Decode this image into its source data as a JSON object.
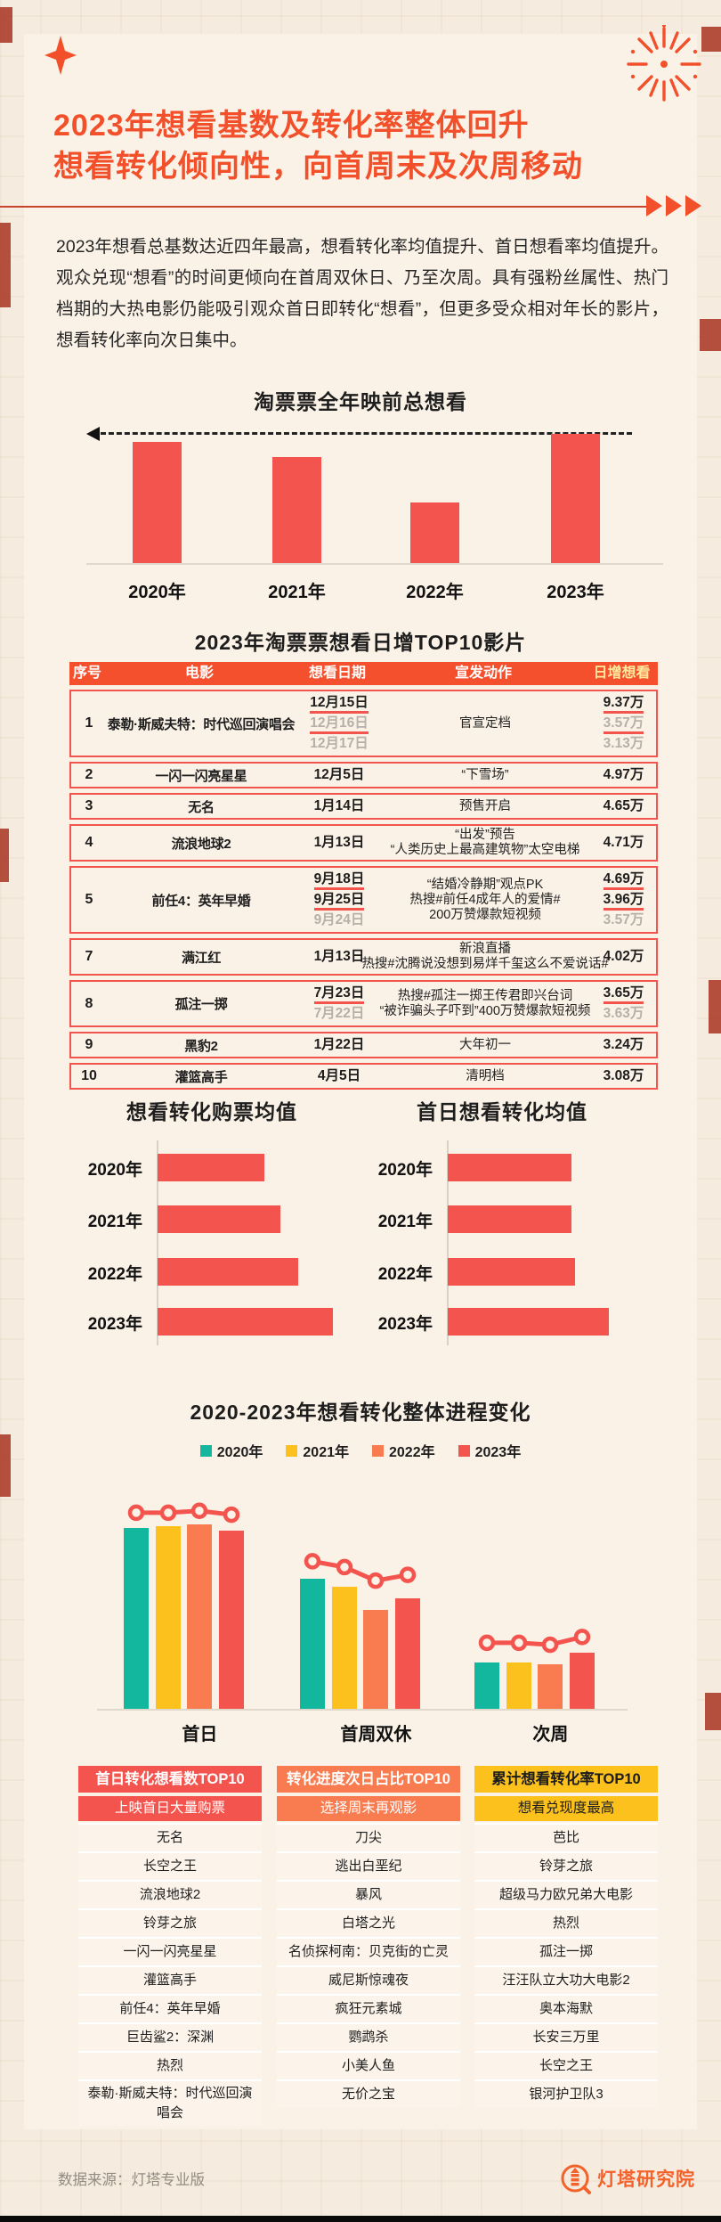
{
  "page": {
    "title_line1": "2023年想看基数及转化率整体回升",
    "title_line2": "想看转化倾向性，向首周末及次周移动",
    "intro": "2023年想看总基数达近四年最高，想看转化率均值提升、首日想看率均值提升。观众兑现“想看”的时间更倾向在首周双休日、乃至次周。具有强粉丝属性、热门档期的大热电影仍能吸引观众首日即转化“想看”，但更多受众相对年长的影片，想看转化率向次日集中。",
    "footer_source": "数据来源：灯塔专业版",
    "brand": "灯塔研究院"
  },
  "colors": {
    "accent": "#f2502b",
    "red": "#f4544e",
    "orange": "#f87c4f",
    "yellow": "#fcc11d",
    "teal": "#13b79d",
    "table_header_bg": "#f4502d",
    "table_header_accent_text": "#ffec9f",
    "gray_text": "#b5b0a8"
  },
  "chart_data": [
    {
      "id": "annual_total_wish",
      "type": "bar",
      "title": "淘票票全年映前总想看",
      "categories": [
        "2020年",
        "2021年",
        "2022年",
        "2023年"
      ],
      "values": [
        94,
        82,
        47,
        100
      ],
      "ylabel": "",
      "xlabel": "",
      "ylim": [
        0,
        100
      ],
      "unit": "relative index (2023 = 100, no numeric labels shown)",
      "annotation": "dashed reference line with left arrow at 2023 bar top"
    },
    {
      "id": "wish_to_purchase_avg",
      "type": "bar",
      "orientation": "horizontal",
      "title": "想看转化购票均值",
      "categories": [
        "2020年",
        "2021年",
        "2022年",
        "2023年"
      ],
      "values": [
        61,
        70,
        80,
        100
      ],
      "unit": "relative index (2023 = 100, no numeric labels shown)"
    },
    {
      "id": "first_day_wish_conversion_avg",
      "type": "bar",
      "orientation": "horizontal",
      "title": "首日想看转化均值",
      "categories": [
        "2020年",
        "2021年",
        "2022年",
        "2023年"
      ],
      "values": [
        77,
        77,
        79,
        100
      ],
      "unit": "relative index (2023 = 100, no numeric labels shown)"
    },
    {
      "id": "conversion_progress_change",
      "type": "bar+line",
      "title": "2020-2023年想看转化整体进程变化",
      "categories": [
        "首日",
        "首周双休",
        "次周"
      ],
      "legend_position": "top",
      "series": [
        {
          "name": "2020年",
          "color": "#13b79d",
          "values": [
            93,
            67,
            24
          ]
        },
        {
          "name": "2021年",
          "color": "#fcc11d",
          "values": [
            94,
            63,
            24
          ]
        },
        {
          "name": "2022年",
          "color": "#f87c4f",
          "values": [
            95,
            51,
            23
          ]
        },
        {
          "name": "2023年",
          "color": "#f4544e",
          "values": [
            92,
            57,
            29
          ]
        }
      ],
      "line_overlay": {
        "color": "#f4544e",
        "marker": "open-circle",
        "points_per_group": [
          [
            101,
            101,
            102,
            100
          ],
          [
            76,
            73,
            66,
            69
          ],
          [
            34,
            34,
            33,
            37
          ]
        ]
      },
      "unit": "relative index (no numeric labels shown)"
    }
  ],
  "table": {
    "title": "2023年淘票票想看日增TOP10影片",
    "headers": [
      "序号",
      "电影",
      "想看日期",
      "宣发动作",
      "日增想看"
    ],
    "rows": [
      {
        "no": "1",
        "movie": "泰勒·斯威夫特：时代巡回演唱会",
        "dates": [
          {
            "t": "12月15日",
            "u": 1
          },
          {
            "t": "12月16日",
            "u": 1,
            "g": 1
          },
          {
            "t": "12月17日",
            "g": 1
          }
        ],
        "actions": [
          {
            "t": "官宣定档"
          }
        ],
        "values": [
          {
            "t": "9.37万",
            "u": 1
          },
          {
            "t": "3.57万",
            "u": 1,
            "g": 1
          },
          {
            "t": "3.13万",
            "g": 1
          }
        ]
      },
      {
        "no": "2",
        "movie": "一闪一闪亮星星",
        "dates": [
          {
            "t": "12月5日"
          }
        ],
        "actions": [
          {
            "t": "“下雪场”"
          }
        ],
        "values": [
          {
            "t": "4.97万"
          }
        ]
      },
      {
        "no": "3",
        "movie": "无名",
        "dates": [
          {
            "t": "1月14日"
          }
        ],
        "actions": [
          {
            "t": "预售开启"
          }
        ],
        "values": [
          {
            "t": "4.65万"
          }
        ]
      },
      {
        "no": "4",
        "movie": "流浪地球2",
        "dates": [
          {
            "t": "1月13日"
          }
        ],
        "actions": [
          {
            "t": "“出发”预告"
          },
          {
            "t": "“人类历史上最高建筑物”太空电梯"
          }
        ],
        "values": [
          {
            "t": "4.71万"
          }
        ]
      },
      {
        "no": "5",
        "movie": "前任4：英年早婚",
        "dates": [
          {
            "t": "9月18日",
            "u": 1
          },
          {
            "t": "9月25日",
            "u": 1
          },
          {
            "t": "9月24日",
            "g": 1
          }
        ],
        "actions": [
          {
            "t": "“结婚冷静期”观点PK"
          },
          {
            "t": "热搜#前任4成年人的爱情#"
          },
          {
            "t": "200万赞爆款短视频"
          }
        ],
        "values": [
          {
            "t": "4.69万",
            "u": 1
          },
          {
            "t": "3.96万",
            "u": 1
          },
          {
            "t": "3.57万",
            "g": 1
          }
        ]
      },
      {
        "no": "7",
        "movie": "满江红",
        "dates": [
          {
            "t": "1月13日"
          }
        ],
        "actions": [
          {
            "t": "新浪直播"
          },
          {
            "t": "热搜#沈腾说没想到易烊千玺这么不爱说话#"
          }
        ],
        "values": [
          {
            "t": "4.02万"
          }
        ]
      },
      {
        "no": "8",
        "movie": "孤注一掷",
        "dates": [
          {
            "t": "7月23日",
            "u": 1
          },
          {
            "t": "7月22日",
            "g": 1
          }
        ],
        "actions": [
          {
            "t": "热搜#孤注一掷王传君即兴台词"
          },
          {
            "t": "“被诈骗头子吓到”400万赞爆款短视频"
          }
        ],
        "values": [
          {
            "t": "3.65万",
            "u": 1
          },
          {
            "t": "3.63万",
            "g": 1
          }
        ]
      },
      {
        "no": "9",
        "movie": "黑豹2",
        "dates": [
          {
            "t": "1月22日"
          }
        ],
        "actions": [
          {
            "t": "大年初一"
          }
        ],
        "values": [
          {
            "t": "3.24万"
          }
        ]
      },
      {
        "no": "10",
        "movie": "灌篮高手",
        "dates": [
          {
            "t": "4月5日"
          }
        ],
        "actions": [
          {
            "t": "清明档"
          }
        ],
        "values": [
          {
            "t": "3.08万"
          }
        ]
      }
    ]
  },
  "cards": [
    {
      "title": "首日转化想看数TOP10",
      "subtitle": "上映首日大量购票",
      "theme": "red",
      "items": [
        "无名",
        "长空之王",
        "流浪地球2",
        "铃芽之旅",
        "一闪一闪亮星星",
        "灌篮高手",
        "前任4：英年早婚",
        "巨齿鲨2：深渊",
        "热烈",
        "泰勒·斯威夫特：时代巡回演唱会"
      ]
    },
    {
      "title": "转化进度次日占比TOP10",
      "subtitle": "选择周末再观影",
      "theme": "orange",
      "items": [
        "刀尖",
        "逃出白垩纪",
        "暴风",
        "白塔之光",
        "名侦探柯南：贝克街的亡灵",
        "威尼斯惊魂夜",
        "疯狂元素城",
        "鹦鹉杀",
        "小美人鱼",
        "无价之宝"
      ]
    },
    {
      "title": "累计想看转化率TOP10",
      "subtitle": "想看兑现度最高",
      "theme": "yellow",
      "items": [
        "芭比",
        "铃芽之旅",
        "超级马力欧兄弟大电影",
        "热烈",
        "孤注一掷",
        "汪汪队立大功大电影2",
        "奥本海默",
        "长安三万里",
        "长空之王",
        "银河护卫队3"
      ]
    }
  ]
}
